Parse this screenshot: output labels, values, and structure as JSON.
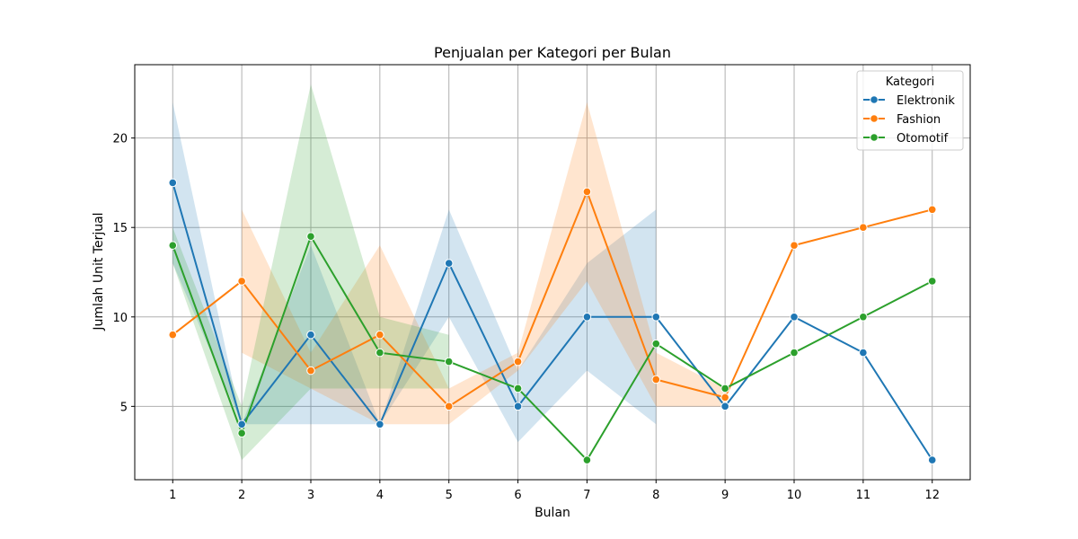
{
  "chart_data": {
    "type": "line",
    "title": "Penjualan per Kategori per Bulan",
    "xlabel": "Bulan",
    "ylabel": "Jumlah Unit Terjual",
    "xlim": [
      0.45,
      12.55
    ],
    "ylim": [
      0.9,
      24.1
    ],
    "xticks": [
      1,
      2,
      3,
      4,
      5,
      6,
      7,
      8,
      9,
      10,
      11,
      12
    ],
    "yticks": [
      5,
      10,
      15,
      20
    ],
    "grid": true,
    "legend": {
      "title": "Kategori",
      "placement": "top-right"
    },
    "series": [
      {
        "name": "Elektronik",
        "color": "#1f77b4",
        "x": [
          1,
          2,
          3,
          4,
          5,
          6,
          7,
          8,
          9,
          10,
          11,
          12
        ],
        "values": [
          17.5,
          4,
          9,
          4,
          13,
          5,
          10,
          10,
          5,
          10,
          8,
          2
        ],
        "ci_x": [
          1,
          2,
          3,
          4,
          5,
          6,
          7,
          8
        ],
        "ci_lower": [
          13,
          4,
          4,
          4,
          10,
          3,
          7,
          4
        ],
        "ci_upper": [
          22,
          4,
          14,
          4,
          16,
          7,
          13,
          16
        ]
      },
      {
        "name": "Fashion",
        "color": "#ff7f0e",
        "x": [
          1,
          2,
          3,
          4,
          5,
          6,
          7,
          8,
          9,
          10,
          11,
          12
        ],
        "values": [
          9,
          12,
          7,
          9,
          5,
          7.5,
          17,
          6.5,
          5.5,
          14,
          15,
          16
        ],
        "ci_x": [
          2,
          3,
          4,
          5,
          6,
          7,
          8,
          9
        ],
        "ci_lower": [
          8,
          6,
          4,
          4,
          7,
          12,
          5,
          5
        ],
        "ci_upper": [
          16,
          8,
          14,
          6,
          8,
          22,
          8,
          6
        ]
      },
      {
        "name": "Otomotif",
        "color": "#2ca02c",
        "x": [
          1,
          2,
          3,
          4,
          5,
          6,
          7,
          8,
          9,
          10,
          11,
          12
        ],
        "values": [
          14,
          3.5,
          14.5,
          8,
          7.5,
          6,
          2,
          8.5,
          6,
          8,
          10,
          12
        ],
        "ci_x": [
          1,
          2,
          3,
          4,
          5
        ],
        "ci_lower": [
          13,
          2,
          6,
          6,
          6
        ],
        "ci_upper": [
          15,
          5,
          23,
          10,
          9
        ]
      }
    ]
  }
}
